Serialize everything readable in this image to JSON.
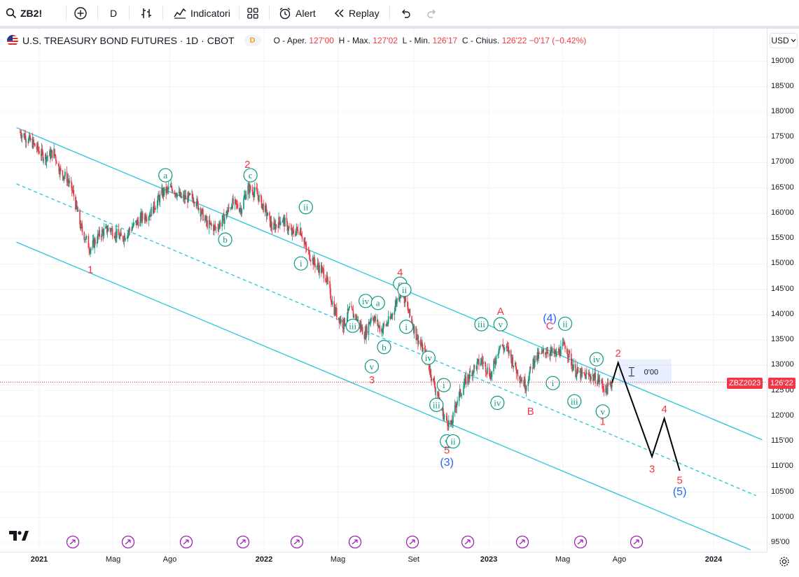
{
  "toolbar": {
    "symbol": "ZB2!",
    "interval": "D",
    "indicators_label": "Indicatori",
    "alert_label": "Alert",
    "replay_label": "Replay"
  },
  "legend": {
    "title": "U.S. TREASURY BOND FUTURES · 1D · CBOT",
    "badge": "D",
    "open_label": "O - Aper.",
    "open_value": "127'00",
    "high_label": "H - Max.",
    "high_value": "127'02",
    "low_label": "L - Min.",
    "low_value": "126'17",
    "close_label": "C - Chius.",
    "close_value": "126'22",
    "change_value": "−0'17 (−0.42%)"
  },
  "currency": "USD",
  "price_label_name": "ZBZ2023",
  "price_label_value": "126'22",
  "measure_label": "0'00",
  "colors": {
    "up": "#089981",
    "down": "#f23645",
    "channel": "#26c6da",
    "wave_red": "#f23645",
    "wave_blue": "#2962ff",
    "wave_green": "#089981",
    "projection": "#000000"
  },
  "chart_data": {
    "type": "candlestick",
    "y_ticks": [
      "190'00",
      "185'00",
      "180'00",
      "175'00",
      "170'00",
      "165'00",
      "160'00",
      "155'00",
      "150'00",
      "145'00",
      "140'00",
      "135'00",
      "130'00",
      "125'00",
      "120'00",
      "115'00",
      "110'00",
      "105'00",
      "100'00",
      "95'00"
    ],
    "x_ticks": [
      {
        "label": "2021",
        "year": true
      },
      {
        "label": "Mag",
        "year": false
      },
      {
        "label": "Ago",
        "year": false
      },
      {
        "label": "2022",
        "year": true
      },
      {
        "label": "Mag",
        "year": false
      },
      {
        "label": "Set",
        "year": false
      },
      {
        "label": "2023",
        "year": true
      },
      {
        "label": "Mag",
        "year": false
      },
      {
        "label": "Ago",
        "year": false
      },
      {
        "label": "2024",
        "year": true
      }
    ],
    "ylim": [
      94,
      193
    ],
    "last_price": 126.69,
    "price_path": [
      [
        "2020-12-01",
        176
      ],
      [
        "2020-12-20",
        174
      ],
      [
        "2021-01-10",
        171
      ],
      [
        "2021-01-25",
        172
      ],
      [
        "2021-02-05",
        168
      ],
      [
        "2021-02-15",
        167
      ],
      [
        "2021-02-25",
        164
      ],
      [
        "2021-03-10",
        157
      ],
      [
        "2021-03-25",
        153
      ],
      [
        "2021-04-10",
        156
      ],
      [
        "2021-04-25",
        157
      ],
      [
        "2021-05-15",
        155
      ],
      [
        "2021-05-30",
        157
      ],
      [
        "2021-06-15",
        159
      ],
      [
        "2021-06-30",
        160
      ],
      [
        "2021-07-20",
        164
      ],
      [
        "2021-08-05",
        165
      ],
      [
        "2021-08-20",
        163
      ],
      [
        "2021-09-10",
        163
      ],
      [
        "2021-09-30",
        158
      ],
      [
        "2021-10-15",
        157
      ],
      [
        "2021-10-28",
        159
      ],
      [
        "2021-11-10",
        162
      ],
      [
        "2021-11-25",
        161
      ],
      [
        "2021-12-05",
        165
      ],
      [
        "2021-12-20",
        164
      ],
      [
        "2022-01-05",
        160
      ],
      [
        "2022-01-15",
        157
      ],
      [
        "2022-01-30",
        159
      ],
      [
        "2022-02-15",
        156
      ],
      [
        "2022-03-01",
        157
      ],
      [
        "2022-03-10",
        153
      ],
      [
        "2022-03-25",
        150
      ],
      [
        "2022-04-10",
        148
      ],
      [
        "2022-04-25",
        141
      ],
      [
        "2022-05-10",
        138
      ],
      [
        "2022-05-20",
        141
      ],
      [
        "2022-06-01",
        139
      ],
      [
        "2022-06-14",
        136
      ],
      [
        "2022-06-25",
        140
      ],
      [
        "2022-07-10",
        137
      ],
      [
        "2022-07-25",
        139
      ],
      [
        "2022-08-05",
        143
      ],
      [
        "2022-08-12",
        145
      ],
      [
        "2022-08-25",
        140
      ],
      [
        "2022-09-05",
        136
      ],
      [
        "2022-09-20",
        132
      ],
      [
        "2022-10-05",
        126
      ],
      [
        "2022-10-20",
        120
      ],
      [
        "2022-11-01",
        118
      ],
      [
        "2022-11-10",
        123
      ],
      [
        "2022-11-25",
        127
      ],
      [
        "2022-12-05",
        129
      ],
      [
        "2022-12-20",
        131
      ],
      [
        "2023-01-05",
        128
      ],
      [
        "2023-01-18",
        134
      ],
      [
        "2023-02-01",
        133
      ],
      [
        "2023-02-15",
        129
      ],
      [
        "2023-03-02",
        126
      ],
      [
        "2023-03-15",
        131
      ],
      [
        "2023-04-05",
        133
      ],
      [
        "2023-04-20",
        132
      ],
      [
        "2023-05-05",
        134
      ],
      [
        "2023-05-20",
        129
      ],
      [
        "2023-06-01",
        128
      ],
      [
        "2023-06-15",
        128
      ],
      [
        "2023-06-30",
        127
      ],
      [
        "2023-07-10",
        125
      ],
      [
        "2023-07-20",
        126.69
      ]
    ],
    "channel_upper": [
      [
        "2020-11-25",
        176.9
      ],
      [
        "2024-03-20",
        115.3
      ]
    ],
    "channel_mid": [
      [
        "2020-11-25",
        165.8
      ],
      [
        "2024-03-10",
        104.3
      ]
    ],
    "channel_lower": [
      [
        "2020-11-25",
        154.3
      ],
      [
        "2024-03-01",
        93.6
      ]
    ],
    "projection": [
      [
        "2023-07-20",
        126.5
      ],
      [
        "2023-07-30",
        130.5
      ],
      [
        "2023-09-23",
        112
      ],
      [
        "2023-10-13",
        119.5
      ],
      [
        "2023-11-07",
        109.2
      ]
    ],
    "wave_labels": [
      {
        "text": "1",
        "color": "red",
        "circle": false,
        "x": "2021-03-25",
        "y": 149.0
      },
      {
        "text": "a",
        "color": "green",
        "circle": true,
        "x": "2021-07-25",
        "y": 167.5
      },
      {
        "text": "b",
        "color": "green",
        "circle": true,
        "x": "2021-10-30",
        "y": 154.8
      },
      {
        "text": "2",
        "color": "red",
        "circle": false,
        "x": "2021-12-05",
        "y": 169.8
      },
      {
        "text": "c",
        "color": "green",
        "circle": true,
        "x": "2021-12-10",
        "y": 167.5
      },
      {
        "text": "ii",
        "color": "green",
        "circle": true,
        "x": "2022-03-10",
        "y": 161.2
      },
      {
        "text": "i",
        "color": "green",
        "circle": true,
        "x": "2022-03-02",
        "y": 150.1
      },
      {
        "text": "iii",
        "color": "green",
        "circle": true,
        "x": "2022-05-25",
        "y": 137.8
      },
      {
        "text": "iv",
        "color": "green",
        "circle": true,
        "x": "2022-06-15",
        "y": 142.7
      },
      {
        "text": "v",
        "color": "green",
        "circle": true,
        "x": "2022-06-25",
        "y": 129.8
      },
      {
        "text": "3",
        "color": "red",
        "circle": false,
        "x": "2022-06-25",
        "y": 127.3
      },
      {
        "text": "a",
        "color": "green",
        "circle": true,
        "x": "2022-07-05",
        "y": 142.3
      },
      {
        "text": "b",
        "color": "green",
        "circle": true,
        "x": "2022-07-15",
        "y": 133.6
      },
      {
        "text": "4",
        "color": "red",
        "circle": false,
        "x": "2022-08-10",
        "y": 148.5
      },
      {
        "text": "c",
        "color": "green",
        "circle": true,
        "x": "2022-08-10",
        "y": 146.1
      },
      {
        "text": "ii",
        "color": "green",
        "circle": true,
        "x": "2022-08-17",
        "y": 144.9
      },
      {
        "text": "i",
        "color": "green",
        "circle": true,
        "x": "2022-08-20",
        "y": 137.6
      },
      {
        "text": "iv",
        "color": "green",
        "circle": true,
        "x": "2022-09-25",
        "y": 131.5
      },
      {
        "text": "i",
        "color": "green",
        "circle": true,
        "x": "2022-10-20",
        "y": 126.1
      },
      {
        "text": "iii",
        "color": "green",
        "circle": true,
        "x": "2022-10-08",
        "y": 122.2
      },
      {
        "text": "v",
        "color": "green",
        "circle": true,
        "x": "2022-10-25",
        "y": 115.0
      },
      {
        "text": "ii",
        "color": "green",
        "circle": true,
        "x": "2022-11-04",
        "y": 115.0
      },
      {
        "text": "5",
        "color": "red",
        "circle": false,
        "x": "2022-10-25",
        "y": 113.4
      },
      {
        "text": "(3)",
        "color": "blue",
        "circle": false,
        "x": "2022-10-25",
        "y": 111.0
      },
      {
        "text": "iii",
        "color": "green",
        "circle": true,
        "x": "2022-12-20",
        "y": 138.1
      },
      {
        "text": "v",
        "color": "green",
        "circle": true,
        "x": "2023-01-20",
        "y": 138.1
      },
      {
        "text": "A",
        "color": "red",
        "circle": false,
        "x": "2023-01-20",
        "y": 140.8
      },
      {
        "text": "iv",
        "color": "green",
        "circle": true,
        "x": "2023-01-15",
        "y": 122.6
      },
      {
        "text": "B",
        "color": "red",
        "circle": false,
        "x": "2023-03-10",
        "y": 121.1
      },
      {
        "text": "(4)",
        "color": "blue",
        "circle": false,
        "x": "2023-04-10",
        "y": 139.4
      },
      {
        "text": "C",
        "color": "red",
        "circle": false,
        "x": "2023-04-10",
        "y": 137.9
      },
      {
        "text": "ii",
        "color": "green",
        "circle": true,
        "x": "2023-05-05",
        "y": 138.2
      },
      {
        "text": "i",
        "color": "green",
        "circle": true,
        "x": "2023-04-15",
        "y": 126.5
      },
      {
        "text": "iii",
        "color": "green",
        "circle": true,
        "x": "2023-05-20",
        "y": 122.9
      },
      {
        "text": "iv",
        "color": "green",
        "circle": true,
        "x": "2023-06-25",
        "y": 131.2
      },
      {
        "text": "v",
        "color": "green",
        "circle": true,
        "x": "2023-07-05",
        "y": 120.9
      },
      {
        "text": "1",
        "color": "red",
        "circle": false,
        "x": "2023-07-05",
        "y": 119.1
      },
      {
        "text": "2",
        "color": "red",
        "circle": false,
        "x": "2023-07-30",
        "y": 132.5
      },
      {
        "text": "3",
        "color": "red",
        "circle": false,
        "x": "2023-09-23",
        "y": 109.7
      },
      {
        "text": "4",
        "color": "red",
        "circle": false,
        "x": "2023-10-13",
        "y": 121.5
      },
      {
        "text": "5",
        "color": "red",
        "circle": false,
        "x": "2023-11-07",
        "y": 107.5
      },
      {
        "text": "(5)",
        "color": "blue",
        "circle": false,
        "x": "2023-11-07",
        "y": 105.2
      }
    ]
  }
}
